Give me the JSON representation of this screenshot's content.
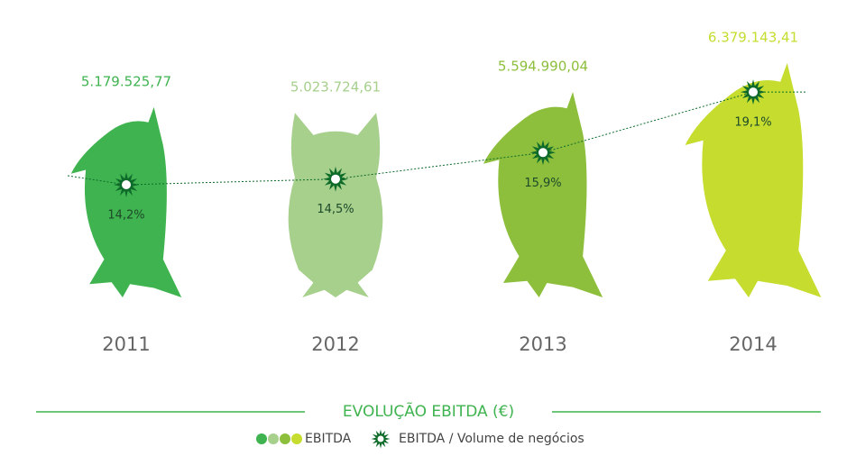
{
  "chart_data": {
    "type": "pictogram",
    "title": "EVOLUÇÃO EBITDA (€)",
    "categories": [
      "2011",
      "2012",
      "2013",
      "2014"
    ],
    "series": [
      {
        "name": "EBITDA",
        "colors": [
          "#3fb34f",
          "#a6d08c",
          "#8dbf3c",
          "#c6dc2e"
        ],
        "values": [
          5179525.77,
          5023724.61,
          5594990.04,
          6379143.41
        ],
        "value_labels": [
          "5.179.525,77",
          "5.023.724,61",
          "5.594.990,04",
          "6.379.143,41"
        ]
      },
      {
        "name": "EBITDA / Volume de negócios",
        "color": "#0e6b2a",
        "values": [
          14.2,
          14.5,
          15.9,
          19.1
        ],
        "value_labels": [
          "14,2%",
          "14,5%",
          "15,9%",
          "19,1%"
        ]
      }
    ]
  }
}
